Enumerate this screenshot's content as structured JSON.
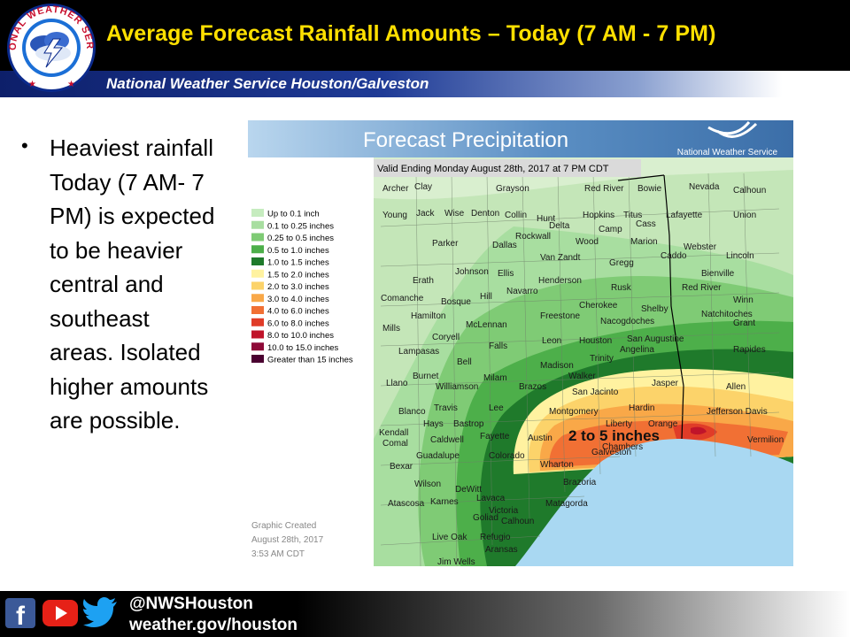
{
  "header": {
    "title": "Average Forecast Rainfall Amounts – Today  (7 AM - 7 PM)",
    "subtitle": "National Weather Service Houston/Galveston",
    "logo_text": "NATIONAL WEATHER SERVICE"
  },
  "bullet": {
    "text": "Heaviest rainfall Today (7 AM- 7 PM) is expected to be heavier central and southeast areas. Isolated higher amounts are possible."
  },
  "map": {
    "banner_title": "Forecast Precipitation",
    "banner_agency": "National Weather Service",
    "valid_text": "Valid Ending Monday August 28th, 2017 at 7 PM CDT",
    "annotation": "2 to 5 inches",
    "created_line1": "Graphic Created",
    "created_line2": "August 28th, 2017",
    "created_line3": "3:53 AM CDT",
    "legend": [
      {
        "label": "Up to 0.1 inch",
        "color": "#c6ecbf"
      },
      {
        "label": "0.1 to 0.25 inches",
        "color": "#a8dea0"
      },
      {
        "label": "0.25 to 0.5 inches",
        "color": "#7fcb75"
      },
      {
        "label": "0.5 to 1.0 inches",
        "color": "#4daf4a"
      },
      {
        "label": "1.0 to 1.5 inches",
        "color": "#1f7a2b"
      },
      {
        "label": "1.5 to 2.0 inches",
        "color": "#fff2a0"
      },
      {
        "label": "2.0 to 3.0 inches",
        "color": "#fcd36a"
      },
      {
        "label": "3.0 to 4.0 inches",
        "color": "#f9a848"
      },
      {
        "label": "4.0 to 6.0 inches",
        "color": "#f17034"
      },
      {
        "label": "6.0 to 8.0 inches",
        "color": "#e03c28"
      },
      {
        "label": "8.0 to 10.0 inches",
        "color": "#c0142a"
      },
      {
        "label": "10.0 to 15.0 inches",
        "color": "#8e0a38"
      },
      {
        "label": "Greater than 15 inches",
        "color": "#4a0030"
      }
    ],
    "counties": [
      "Archer",
      "Clay",
      "Grayson",
      "Red River",
      "Bowie",
      "Nevada",
      "Calhoun",
      "Young",
      "Jack",
      "Wise",
      "Denton",
      "Collin",
      "Hunt",
      "Hopkins",
      "Titus",
      "Cass",
      "Lafayette",
      "Union",
      "Delta",
      "Camp",
      "Rockwall",
      "Wood",
      "Marion",
      "Webster",
      "Parker",
      "Dallas",
      "Caddo",
      "Lincoln",
      "Van Zandt",
      "Gregg",
      "Bienville",
      "Johnson",
      "Ellis",
      "Erath",
      "Henderson",
      "Rusk",
      "Red River",
      "Winn",
      "Hill",
      "Navarro",
      "Comanche",
      "Bosque",
      "Cherokee",
      "Shelby",
      "Natchitoches",
      "Hamilton",
      "Freestone",
      "Nacogdoches",
      "Grant",
      "McLennan",
      "Mills",
      "Coryell",
      "Leon",
      "Houston",
      "San Augustine",
      "Falls",
      "Lampasas",
      "Angelina",
      "Rapides",
      "Bell",
      "Madison",
      "Trinity",
      "Burnet",
      "Milam",
      "Walker",
      "Llano",
      "Williamson",
      "Brazos",
      "San Jacinto",
      "Jasper",
      "Allen",
      "Lee",
      "Blanco",
      "Travis",
      "Montgomery",
      "Hardin",
      "Jefferson Davis",
      "Hays",
      "Liberty",
      "Orange",
      "Kendall",
      "Bastrop",
      "Fayette",
      "Austin",
      "Comal",
      "Caldwell",
      "Chambers",
      "Vermilion",
      "Guadalupe",
      "Colorado",
      "Bexar",
      "Wharton",
      "Galveston",
      "Brazoria",
      "Wilson",
      "DeWitt",
      "Lavaca",
      "Atascosa",
      "Karnes",
      "Victoria",
      "Matagorda",
      "Goliad",
      "Calhoun",
      "Live Oak",
      "Refugio",
      "Aransas",
      "Jim Wells"
    ]
  },
  "footer": {
    "handle": "@NWSHouston",
    "site": "weather.gov/houston",
    "social": [
      "facebook-icon",
      "youtube-icon",
      "twitter-icon"
    ]
  }
}
